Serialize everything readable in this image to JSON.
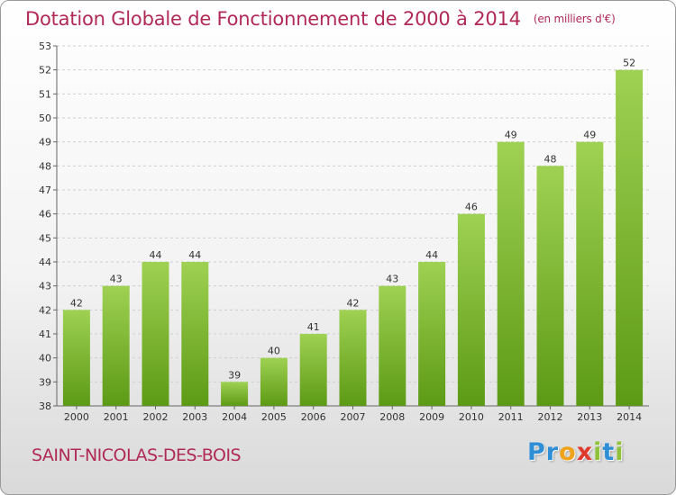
{
  "header": {
    "title": "Dotation Globale de Fonctionnement de 2000 à 2014",
    "unit": "(en milliers d'€)"
  },
  "footer": {
    "commune": "SAINT-NICOLAS-DES-BOIS",
    "logo_letters": [
      {
        "char": "P",
        "color": "#2f8fd6"
      },
      {
        "char": "r",
        "color": "#2f8fd6"
      },
      {
        "char": "o",
        "color": "#f0a21a"
      },
      {
        "char": "x",
        "color": "#e03a2f"
      },
      {
        "char": "i",
        "color": "#8fc23a"
      },
      {
        "char": "t",
        "color": "#2f8fd6"
      },
      {
        "char": "i",
        "color": "#8fc23a"
      }
    ]
  },
  "colors": {
    "title": "#b02a55",
    "bar_top": "#9fd152",
    "bar_bottom": "#5c9a15",
    "axis": "#666666",
    "grid": "#cfcfcf"
  },
  "chart_data": {
    "type": "bar",
    "title": "Dotation Globale de Fonctionnement de 2000 à 2014",
    "xlabel": "",
    "ylabel": "",
    "categories": [
      "2000",
      "2001",
      "2002",
      "2003",
      "2004",
      "2005",
      "2006",
      "2007",
      "2008",
      "2009",
      "2010",
      "2011",
      "2012",
      "2013",
      "2014"
    ],
    "values": [
      42,
      43,
      44,
      44,
      39,
      40,
      41,
      42,
      43,
      44,
      46,
      49,
      48,
      49,
      52
    ],
    "ylim": [
      38,
      53
    ],
    "yticks": [
      38,
      39,
      40,
      41,
      42,
      43,
      44,
      45,
      46,
      47,
      48,
      49,
      50,
      51,
      52,
      53
    ],
    "grid": true
  }
}
